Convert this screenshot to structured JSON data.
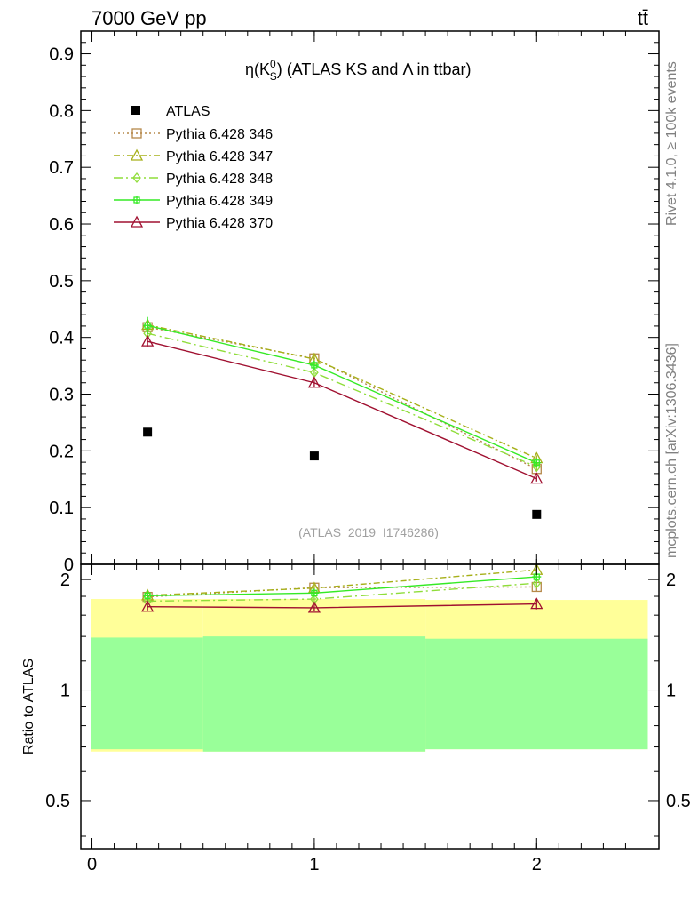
{
  "header": {
    "left": "7000 GeV pp",
    "right": "tt̄"
  },
  "side": {
    "rivet": "Rivet 4.1.0, ≥ 100k events",
    "source": "mcplots.cern.ch [arXiv:1306.3436]"
  },
  "chart_data": {
    "type": "scatter",
    "title_main": "η(K",
    "title_sup": "0",
    "title_sub": "S",
    "title_rest": ") (ATLAS KS and Λ in ttbar)",
    "watermark": "(ATLAS_2019_I1746286)",
    "ylabel_ratio": "Ratio to ATLAS",
    "x": [
      0.25,
      1.0,
      2.0
    ],
    "xlim": [
      -0.05,
      2.55
    ],
    "x_ticks": [
      "0",
      "1",
      "2"
    ],
    "ylim": [
      0,
      0.94
    ],
    "y_ticks": [
      "0",
      "0.1",
      "0.2",
      "0.3",
      "0.4",
      "0.5",
      "0.6",
      "0.7",
      "0.8",
      "0.9"
    ],
    "ratio_ylim": [
      0.37,
      2.2
    ],
    "ratio_ticks": [
      "0.5",
      "1",
      "2"
    ],
    "data": {
      "name": "ATLAS",
      "values": [
        0.233,
        0.191,
        0.088
      ]
    },
    "series": [
      {
        "name": "Pythia 6.428 346",
        "color": "#b5884a",
        "dash": "2,3",
        "marker": "square",
        "values": [
          0.418,
          0.363,
          0.168
        ],
        "errors": [
          0.008,
          0.007,
          0.005
        ]
      },
      {
        "name": "Pythia 6.428 347",
        "color": "#a6b019",
        "dash": "7,3,2,3",
        "marker": "triangle",
        "values": [
          0.422,
          0.362,
          0.187
        ],
        "errors": [
          0.008,
          0.007,
          0.005
        ]
      },
      {
        "name": "Pythia 6.428 348",
        "color": "#8fdd3a",
        "dash": "10,4,2,4",
        "marker": "diamond",
        "values": [
          0.407,
          0.338,
          0.172
        ],
        "errors": [
          0.008,
          0.007,
          0.005
        ]
      },
      {
        "name": "Pythia 6.428 349",
        "color": "#35ea25",
        "dash": "",
        "marker": "cross",
        "values": [
          0.421,
          0.351,
          0.179
        ],
        "errors": [
          0.015,
          0.007,
          0.005
        ]
      },
      {
        "name": "Pythia 6.428 370",
        "color": "#a01030",
        "dash": "",
        "marker": "triangle",
        "values": [
          0.393,
          0.32,
          0.151
        ],
        "errors": [
          0.009,
          0.007,
          0.005
        ]
      }
    ],
    "bands": {
      "bins": [
        [
          -0.05,
          0.5
        ],
        [
          0.5,
          1.5
        ],
        [
          1.5,
          2.5
        ]
      ],
      "outer": {
        "color": "#ffff99",
        "lo": [
          0.68,
          0.68,
          0.69
        ],
        "hi": [
          1.77,
          1.77,
          1.76
        ]
      },
      "inner": {
        "color": "#99ff99",
        "lo": [
          0.69,
          0.68,
          0.69
        ],
        "hi": [
          1.39,
          1.4,
          1.38
        ]
      }
    }
  }
}
